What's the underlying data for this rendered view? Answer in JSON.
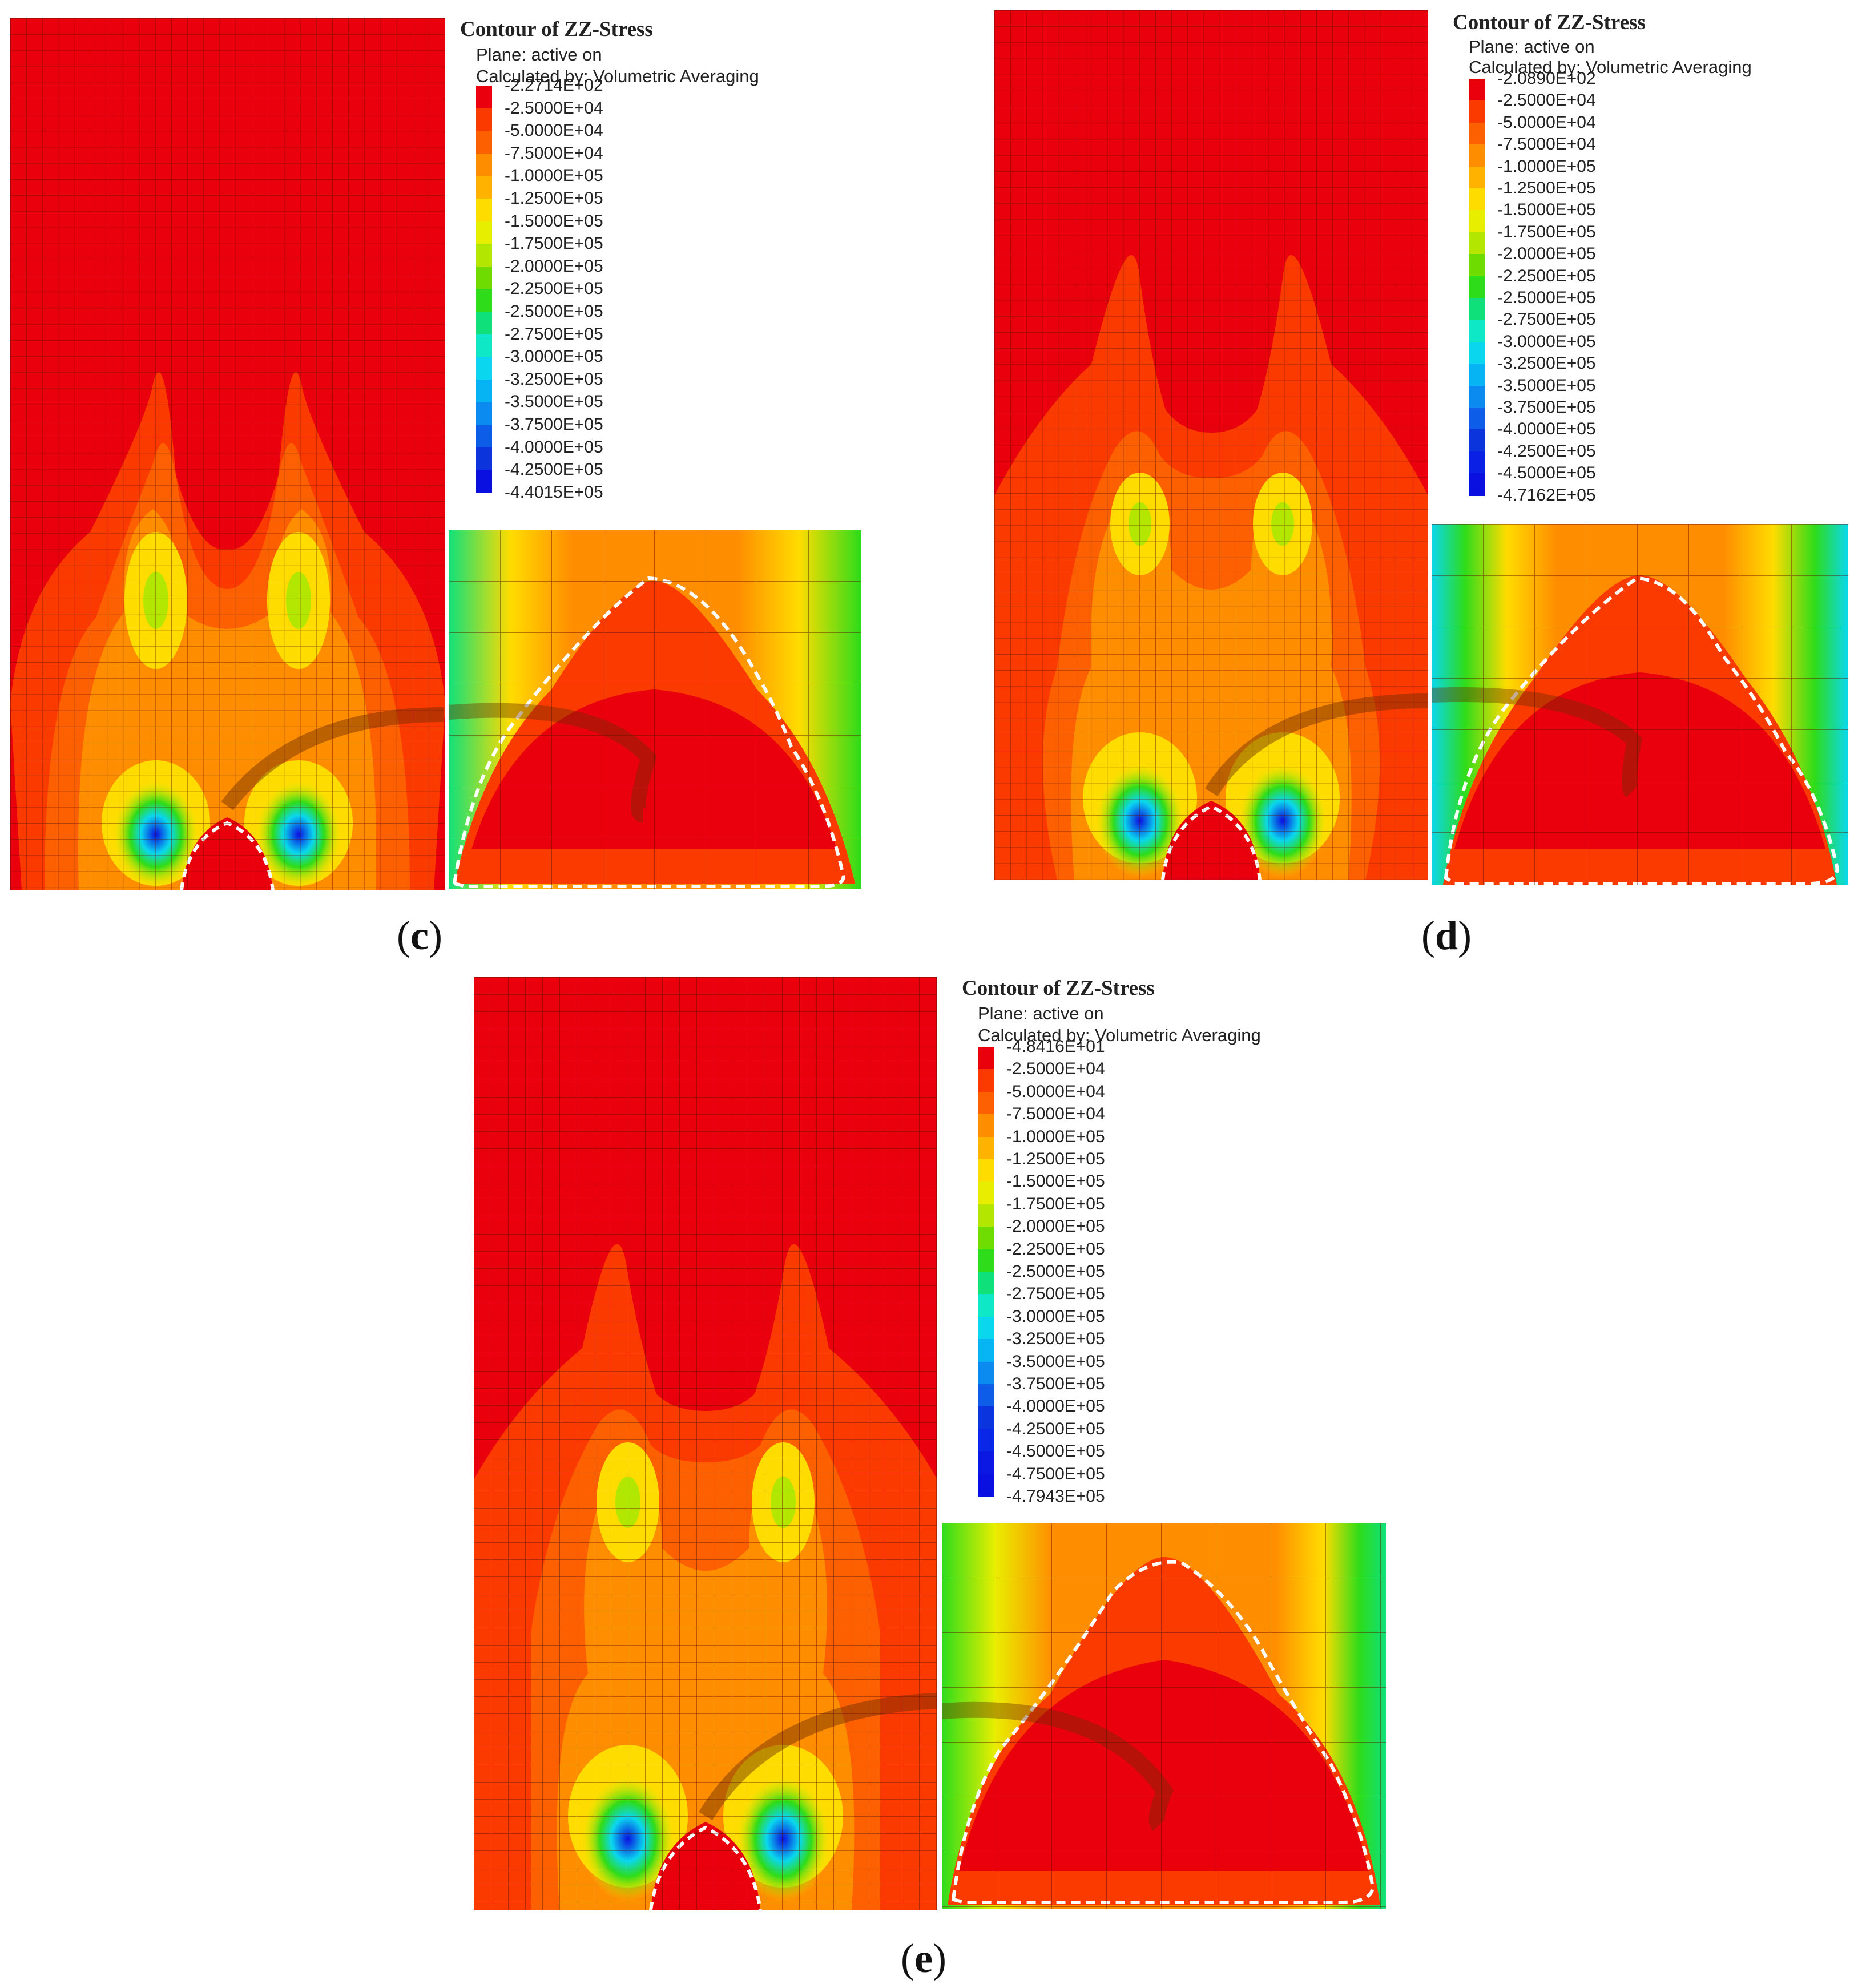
{
  "panels": [
    {
      "id": "c",
      "caption_letter": "c",
      "legend": {
        "title": "Contour of ZZ-Stress",
        "plane": "Plane: active on",
        "method": "Calculated by: Volumetric Averaging",
        "ticks": [
          "-2.2714E+02",
          "-2.5000E+04",
          "-5.0000E+04",
          "-7.5000E+04",
          "-1.0000E+05",
          "-1.2500E+05",
          "-1.5000E+05",
          "-1.7500E+05",
          "-2.0000E+05",
          "-2.2500E+05",
          "-2.5000E+05",
          "-2.7500E+05",
          "-3.0000E+05",
          "-3.2500E+05",
          "-3.5000E+05",
          "-3.7500E+05",
          "-4.0000E+05",
          "-4.2500E+05",
          "-4.4015E+05"
        ],
        "colors": [
          "#e9000c",
          "#fb3a00",
          "#fd6000",
          "#ff8d00",
          "#ffb300",
          "#ffdc00",
          "#e8ee00",
          "#b3e600",
          "#6fdc00",
          "#2edc1a",
          "#10e07a",
          "#0ee8c6",
          "#0ad7ee",
          "#06b3f3",
          "#0b8bf0",
          "#0d5de8",
          "#0b34dc",
          "#0a10e0"
        ]
      }
    },
    {
      "id": "d",
      "caption_letter": "d",
      "legend": {
        "title": "Contour of ZZ-Stress",
        "plane": "Plane: active on",
        "method": "Calculated by: Volumetric Averaging",
        "ticks": [
          "-2.0890E+02",
          "-2.5000E+04",
          "-5.0000E+04",
          "-7.5000E+04",
          "-1.0000E+05",
          "-1.2500E+05",
          "-1.5000E+05",
          "-1.7500E+05",
          "-2.0000E+05",
          "-2.2500E+05",
          "-2.5000E+05",
          "-2.7500E+05",
          "-3.0000E+05",
          "-3.2500E+05",
          "-3.5000E+05",
          "-3.7500E+05",
          "-4.0000E+05",
          "-4.2500E+05",
          "-4.5000E+05",
          "-4.7162E+05"
        ],
        "colors": [
          "#e9000c",
          "#fb3a00",
          "#fd6000",
          "#ff8d00",
          "#ffb300",
          "#ffdc00",
          "#e8ee00",
          "#b3e600",
          "#6fdc00",
          "#2edc1a",
          "#10e07a",
          "#0ee8c6",
          "#0ad7ee",
          "#06b3f3",
          "#0b8bf0",
          "#0d5de8",
          "#0b34dc",
          "#0a20e4",
          "#0a10e0"
        ]
      }
    },
    {
      "id": "e",
      "caption_letter": "e",
      "legend": {
        "title": "Contour of ZZ-Stress",
        "plane": "Plane: active on",
        "method": "Calculated by: Volumetric Averaging",
        "ticks": [
          "-4.8416E+01",
          "-2.5000E+04",
          "-5.0000E+04",
          "-7.5000E+04",
          "-1.0000E+05",
          "-1.2500E+05",
          "-1.5000E+05",
          "-1.7500E+05",
          "-2.0000E+05",
          "-2.2500E+05",
          "-2.5000E+05",
          "-2.7500E+05",
          "-3.0000E+05",
          "-3.2500E+05",
          "-3.5000E+05",
          "-3.7500E+05",
          "-4.0000E+05",
          "-4.2500E+05",
          "-4.5000E+05",
          "-4.7500E+05",
          "-4.7943E+05"
        ],
        "colors": [
          "#e9000c",
          "#fb3a00",
          "#fd6000",
          "#ff8d00",
          "#ffb300",
          "#ffdc00",
          "#e8ee00",
          "#b3e600",
          "#6fdc00",
          "#2edc1a",
          "#10e07a",
          "#0ee8c6",
          "#0ad7ee",
          "#06b3f3",
          "#0b8bf0",
          "#0d5de8",
          "#0b34dc",
          "#0a26e6",
          "#0a18e2",
          "#0a10e0"
        ]
      }
    }
  ]
}
